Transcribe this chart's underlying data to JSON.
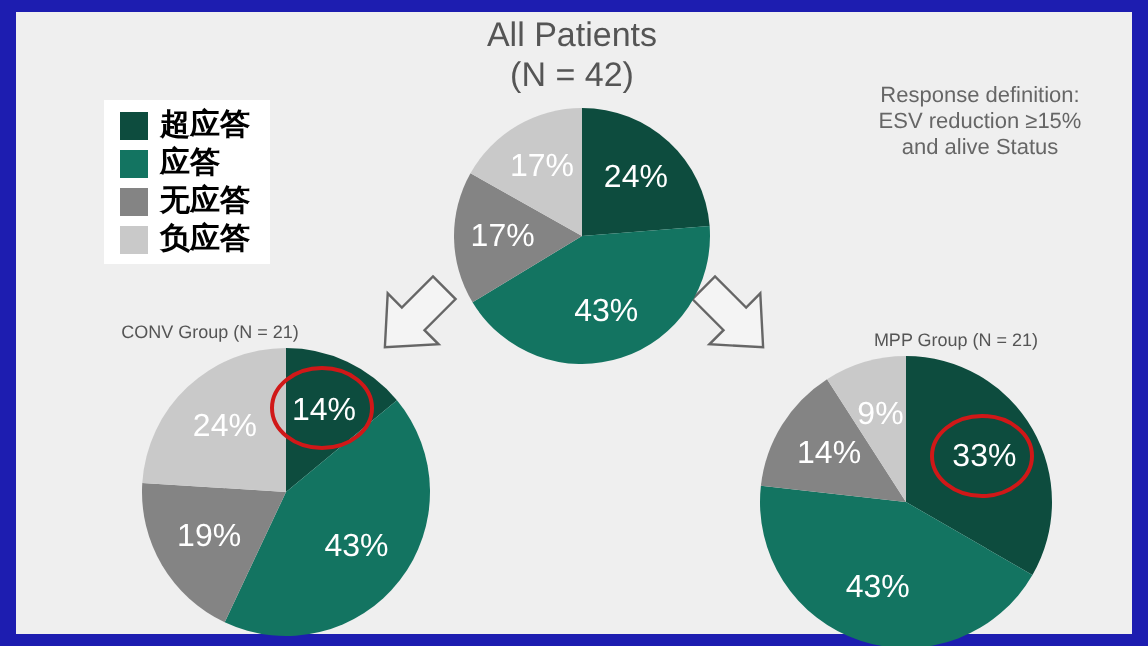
{
  "chart_data": [
    {
      "type": "pie",
      "title": "All Patients",
      "subtitle": "(N = 42)",
      "annotations": [
        "Response definition:\nESV reduction ≥15%\nand alive Status"
      ],
      "categories": [
        "超应答",
        "应答",
        "无应答",
        "负应答"
      ],
      "values": [
        24,
        43,
        17,
        17
      ],
      "value_labels": [
        "24%",
        "43%",
        "17%",
        "17%"
      ],
      "colors": [
        "#0d4c3e",
        "#137461",
        "#848484",
        "#c9c9c9"
      ],
      "legend": "top left"
    },
    {
      "type": "pie",
      "title": "CONV Group (N = 21)",
      "categories": [
        null,
        null,
        null,
        null
      ],
      "values": [
        14,
        43,
        19,
        24
      ],
      "value_labels": [
        "14%",
        "43%",
        "19%",
        "24%"
      ],
      "colors": [
        "#0d4c3e",
        "#137461",
        "#848484",
        "#c9c9c9"
      ]
    },
    {
      "type": "pie",
      "title": "MPP Group (N = 21)",
      "categories": [
        null,
        null,
        null,
        null
      ],
      "values": [
        33,
        43,
        14,
        9
      ],
      "value_labels": [
        "33%",
        "43%",
        "14%",
        "9%"
      ],
      "colors": [
        "#0d4c3e",
        "#137461",
        "#848484",
        "#c9c9c9"
      ]
    }
  ]
}
